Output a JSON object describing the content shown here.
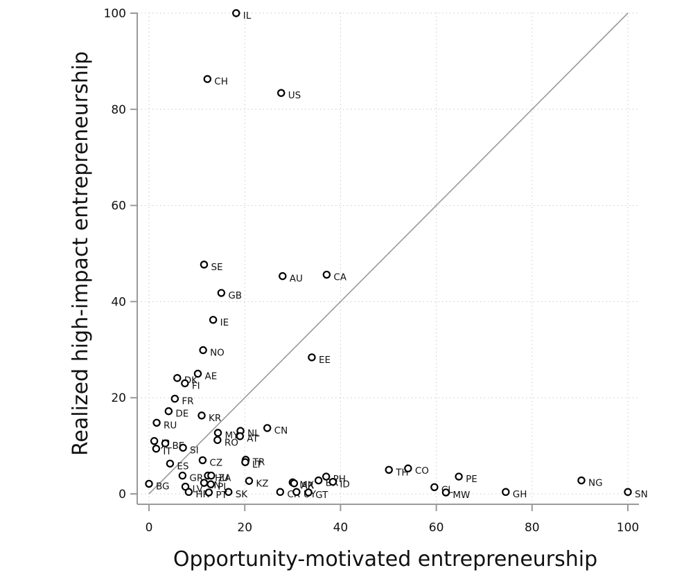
{
  "chart_data": {
    "type": "scatter",
    "title": "",
    "xlabel": "Opportunity-motivated entrepreneurship",
    "ylabel": "Realized high-impact entrepreneurship",
    "xlim": [
      0,
      100
    ],
    "ylim": [
      0,
      100
    ],
    "xticks": [
      "0",
      "20",
      "40",
      "60",
      "80",
      "100"
    ],
    "yticks": [
      "0",
      "20",
      "40",
      "60",
      "80",
      "100"
    ],
    "grid": true,
    "reference_line": {
      "from": [
        0,
        0
      ],
      "to": [
        100,
        100
      ]
    },
    "points": [
      {
        "label": "IL",
        "x": 18.2,
        "y": 100
      },
      {
        "label": "CH",
        "x": 12.2,
        "y": 86.3
      },
      {
        "label": "US",
        "x": 27.6,
        "y": 83.4
      },
      {
        "label": "SE",
        "x": 11.5,
        "y": 47.7
      },
      {
        "label": "AU",
        "x": 27.9,
        "y": 45.3
      },
      {
        "label": "CA",
        "x": 37.1,
        "y": 45.6
      },
      {
        "label": "GB",
        "x": 15.1,
        "y": 41.8
      },
      {
        "label": "IE",
        "x": 13.4,
        "y": 36.2
      },
      {
        "label": "NO",
        "x": 11.3,
        "y": 29.9
      },
      {
        "label": "EE",
        "x": 34.0,
        "y": 28.4
      },
      {
        "label": "AE",
        "x": 10.2,
        "y": 25.0
      },
      {
        "label": "DK",
        "x": 5.9,
        "y": 24.1
      },
      {
        "label": "FI",
        "x": 7.5,
        "y": 23.0
      },
      {
        "label": "FR",
        "x": 5.4,
        "y": 19.8
      },
      {
        "label": "DE",
        "x": 4.1,
        "y": 17.2
      },
      {
        "label": "KR",
        "x": 11.0,
        "y": 16.3
      },
      {
        "label": "RU",
        "x": 1.6,
        "y": 14.8
      },
      {
        "label": "CN",
        "x": 24.7,
        "y": 13.7
      },
      {
        "label": "NL",
        "x": 19.1,
        "y": 13.1
      },
      {
        "label": "MY",
        "x": 14.4,
        "y": 12.7
      },
      {
        "label": "AT",
        "x": 19.0,
        "y": 12.0
      },
      {
        "label": "RO",
        "x": 14.3,
        "y": 11.2
      },
      {
        "label": "JP",
        "x": 1.1,
        "y": 11.0
      },
      {
        "label": "BE",
        "x": 3.4,
        "y": 10.5
      },
      {
        "label": "IT",
        "x": 1.5,
        "y": 9.4
      },
      {
        "label": "SI",
        "x": 7.1,
        "y": 9.6
      },
      {
        "label": "TR",
        "x": 20.2,
        "y": 7.1
      },
      {
        "label": "LT",
        "x": 20.1,
        "y": 6.6
      },
      {
        "label": "CZ",
        "x": 11.2,
        "y": 7.0
      },
      {
        "label": "ES",
        "x": 4.4,
        "y": 6.3
      },
      {
        "label": "TH",
        "x": 50.1,
        "y": 5.0
      },
      {
        "label": "CO",
        "x": 54.1,
        "y": 5.3
      },
      {
        "label": "GR",
        "x": 7.0,
        "y": 3.8
      },
      {
        "label": "HU",
        "x": 12.3,
        "y": 3.8
      },
      {
        "label": "ZA",
        "x": 13.0,
        "y": 3.8
      },
      {
        "label": "PH",
        "x": 37.0,
        "y": 3.6
      },
      {
        "label": "PE",
        "x": 64.7,
        "y": 3.6
      },
      {
        "label": "NG",
        "x": 90.3,
        "y": 2.8
      },
      {
        "label": "KZ",
        "x": 20.9,
        "y": 2.7
      },
      {
        "label": "BR",
        "x": 35.4,
        "y": 2.8
      },
      {
        "label": "ID",
        "x": 38.4,
        "y": 2.5
      },
      {
        "label": "MX",
        "x": 30.0,
        "y": 2.4
      },
      {
        "label": "AR",
        "x": 30.3,
        "y": 2.2
      },
      {
        "label": "IN",
        "x": 11.5,
        "y": 2.3
      },
      {
        "label": "PL",
        "x": 12.9,
        "y": 2.0
      },
      {
        "label": "BG",
        "x": 0.0,
        "y": 2.1
      },
      {
        "label": "CL",
        "x": 59.6,
        "y": 1.4
      },
      {
        "label": "LV",
        "x": 7.6,
        "y": 1.5
      },
      {
        "label": "HR",
        "x": 8.3,
        "y": 0.4
      },
      {
        "label": "SK",
        "x": 16.6,
        "y": 0.4
      },
      {
        "label": "PT",
        "x": 12.5,
        "y": 0.3
      },
      {
        "label": "MW",
        "x": 62.0,
        "y": 0.3
      },
      {
        "label": "GH",
        "x": 74.5,
        "y": 0.4
      },
      {
        "label": "SN",
        "x": 100.0,
        "y": 0.4
      },
      {
        "label": "CR",
        "x": 27.4,
        "y": 0.4
      },
      {
        "label": "UY",
        "x": 30.8,
        "y": 0.4
      },
      {
        "label": "GT",
        "x": 33.3,
        "y": 0.3
      }
    ]
  }
}
